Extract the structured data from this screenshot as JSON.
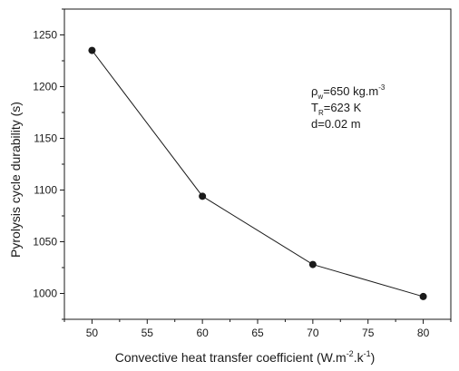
{
  "chart_data": {
    "type": "line",
    "title": "",
    "xlabel": "Convective heat transfer coefficient (W.m-2.k-1)",
    "ylabel": "Pyrolysis cycle durability (s)",
    "xlabel_parts": {
      "main": "Convective heat transfer coefficient (W.m",
      "sup1": "-2",
      "mid": ".k",
      "sup2": "-1",
      "end": ")"
    },
    "x": [
      50,
      60,
      70,
      80
    ],
    "series": [
      {
        "values": [
          1235,
          1094,
          1028,
          997
        ]
      }
    ],
    "xlim": [
      47.5,
      82.5
    ],
    "ylim": [
      975,
      1275
    ],
    "xticks": [
      50,
      55,
      60,
      65,
      70,
      75,
      80
    ],
    "yticks": [
      1000,
      1050,
      1100,
      1150,
      1200,
      1250
    ],
    "grid": false,
    "legend": "none",
    "annotations": [
      {
        "main": "ρ",
        "sub": "w",
        "rest": "=650 kg.m",
        "sup": "-3"
      },
      {
        "main": "T",
        "sub": "R",
        "rest": "=623 K",
        "sup": ""
      },
      {
        "main": "d=0.02 m",
        "sub": "",
        "rest": "",
        "sup": ""
      }
    ],
    "colors": {
      "line": "#1a1a1a",
      "marker": "#1a1a1a",
      "axis": "#1a1a1a"
    }
  }
}
